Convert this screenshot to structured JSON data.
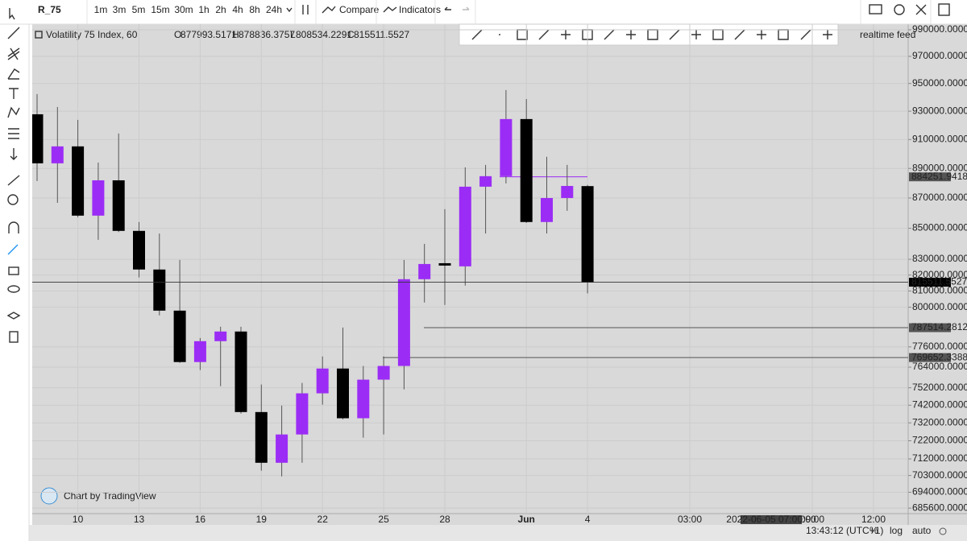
{
  "toolbar": {
    "symbol": "R_75",
    "intervals": [
      "1m",
      "3m",
      "5m",
      "15m",
      "30m",
      "1h",
      "2h",
      "4h",
      "8h",
      "24h"
    ],
    "active_interval": "15m",
    "compare": "Compare",
    "indicators": "Indicators"
  },
  "legend": {
    "title": "Volatility 75 Index, 60",
    "ohlc_labels": [
      "O",
      "H",
      "L",
      "C"
    ],
    "status": "realtime feed"
  },
  "watermark": "Chart by TradingView",
  "status_bar": {
    "time": "13:43:12 (UTC+1)",
    "percent": "%",
    "log": "log",
    "auto": "auto"
  },
  "chart_data": {
    "type": "candlestick",
    "log_scale": true,
    "grid": true,
    "up_color": "#9b2cf5",
    "down_color": "#000000",
    "categories": [
      null,
      null,
      "10",
      null,
      null,
      "13",
      null,
      null,
      "16",
      null,
      null,
      "19",
      null,
      null,
      "22",
      null,
      null,
      "25",
      null,
      null,
      "28",
      null,
      null,
      null,
      "Jun",
      null,
      null,
      "4"
    ],
    "candles": [
      {
        "open": 927800,
        "high": 942300,
        "low": 881400,
        "close": 893500
      },
      {
        "open": 893500,
        "high": 933000,
        "low": 866800,
        "close": 905200
      },
      {
        "open": 905200,
        "high": 923800,
        "low": 857200,
        "close": 858300
      },
      {
        "open": 858300,
        "high": 894000,
        "low": 842500,
        "close": 881900
      },
      {
        "open": 881900,
        "high": 914200,
        "low": 847500,
        "close": 848300
      },
      {
        "open": 848300,
        "high": 854100,
        "low": 818500,
        "close": 823500
      },
      {
        "open": 823500,
        "high": 846600,
        "low": 795000,
        "close": 797900
      },
      {
        "open": 797900,
        "high": 829600,
        "low": 766500,
        "close": 767000
      },
      {
        "open": 767000,
        "high": 781300,
        "low": 762300,
        "close": 779400
      },
      {
        "open": 779400,
        "high": 788100,
        "low": 752900,
        "close": 785200
      },
      {
        "open": 785200,
        "high": 788100,
        "low": 737200,
        "close": 738100
      },
      {
        "open": 738100,
        "high": 753900,
        "low": 705600,
        "close": 709900
      },
      {
        "open": 709900,
        "high": 741800,
        "low": 702500,
        "close": 725500
      },
      {
        "open": 725500,
        "high": 754800,
        "low": 709900,
        "close": 748800
      },
      {
        "open": 748800,
        "high": 770300,
        "low": 742300,
        "close": 763200
      },
      {
        "open": 763200,
        "high": 787600,
        "low": 734000,
        "close": 734600
      },
      {
        "open": 734600,
        "high": 764700,
        "low": 723700,
        "close": 756700
      },
      {
        "open": 756700,
        "high": 770300,
        "low": 725500,
        "close": 764700
      },
      {
        "open": 764700,
        "high": 829600,
        "low": 751100,
        "close": 817400
      },
      {
        "open": 817400,
        "high": 839900,
        "low": 802900,
        "close": 827000
      },
      {
        "open": 827500,
        "high": 862600,
        "low": 801400,
        "close": 826000
      },
      {
        "open": 825500,
        "high": 890700,
        "low": 813400,
        "close": 877600
      },
      {
        "open": 877600,
        "high": 892400,
        "low": 846600,
        "close": 884700
      },
      {
        "open": 884700,
        "high": 945200,
        "low": 879800,
        "close": 924400
      },
      {
        "open": 924400,
        "high": 938700,
        "low": 853500,
        "close": 854100
      },
      {
        "open": 854100,
        "high": 898000,
        "low": 846600,
        "close": 870000
      },
      {
        "open": 870000,
        "high": 892400,
        "low": 861500,
        "close": 878100
      },
      {
        "open": 877993.5171,
        "high": 878836.3757,
        "low": 808534.2291,
        "close": 815511.5527
      }
    ],
    "ylim": [
      682700,
      994300
    ],
    "yticks": [
      {
        "value": 990000,
        "label": "990000.0000"
      },
      {
        "value": 970000,
        "label": "970000.0000"
      },
      {
        "value": 950000,
        "label": "950000.0000"
      },
      {
        "value": 930000,
        "label": "930000.0000"
      },
      {
        "value": 910000,
        "label": "910000.0000"
      },
      {
        "value": 890000,
        "label": "890000.0000"
      },
      {
        "value": 870000,
        "label": "870000.0000"
      },
      {
        "value": 850000,
        "label": "850000.0000"
      },
      {
        "value": 830000,
        "label": "830000.0000"
      },
      {
        "value": 820000,
        "label": "820000.0000"
      },
      {
        "value": 810000,
        "label": "810000.0000"
      },
      {
        "value": 800000,
        "label": "800000.0000"
      },
      {
        "value": 776000,
        "label": "776000.0000"
      },
      {
        "value": 764000,
        "label": "764000.0000"
      },
      {
        "value": 752000,
        "label": "752000.0000"
      },
      {
        "value": 742000,
        "label": "742000.0000"
      },
      {
        "value": 732000,
        "label": "732000.0000"
      },
      {
        "value": 722000,
        "label": "722000.0000"
      },
      {
        "value": 712000,
        "label": "712000.0000"
      },
      {
        "value": 703000,
        "label": "703000.0000"
      },
      {
        "value": 694000,
        "label": "694000.0000"
      },
      {
        "value": 685600,
        "label": "685600.0000"
      }
    ],
    "lines": [
      {
        "value": 884251.9418,
        "color": "#9b2cf5"
      },
      {
        "value": 787514.2812,
        "color": "#555555"
      },
      {
        "value": 769652.3388,
        "color": "#555555"
      }
    ],
    "future_time_labels": [
      "03:00",
      "09:00",
      "12:00"
    ],
    "crosshair_label": "2022-06-05 07:00:00"
  }
}
